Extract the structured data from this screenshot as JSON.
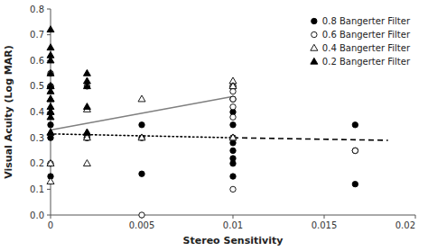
{
  "chart_data": {
    "type": "scatter",
    "xlabel": "Stereo Sensitivity",
    "ylabel": "Visual Acuity (Log MAR)",
    "xlim": [
      0,
      0.02
    ],
    "ylim": [
      0,
      0.8
    ],
    "xticks": [
      0,
      0.005,
      0.01,
      0.015,
      0.02
    ],
    "yticks": [
      {
        "value": 0,
        "label": "0.0"
      },
      0.1,
      0.2,
      0.3,
      0.4,
      0.5,
      0.6,
      0.7,
      0.8
    ],
    "legend": "upper right",
    "series": [
      {
        "name": "0.8 Bangerter Filter",
        "type": "scatter",
        "marker": "circle",
        "color": "black",
        "x": [
          0,
          0,
          0,
          0,
          0.002,
          0.002,
          0.005,
          0.005,
          0.005,
          0.01,
          0.01,
          0.01,
          0.01,
          0.01,
          0.01,
          0.01,
          0.01,
          0.01,
          0.01,
          0.0167,
          0.0167,
          0.0167
        ],
        "values": [
          0.5,
          0.35,
          0.3,
          0.15,
          0.3,
          0.3,
          0.35,
          0.3,
          0.16,
          0.5,
          0.45,
          0.4,
          0.35,
          0.3,
          0.28,
          0.25,
          0.22,
          0.2,
          0.15,
          0.35,
          0.25,
          0.12
        ]
      },
      {
        "name": "0.6 Bangerter Filter",
        "type": "scatter",
        "marker": "circle",
        "color": "white",
        "x": [
          0,
          0,
          0,
          0.002,
          0.002,
          0.005,
          0.01,
          0.01,
          0.01,
          0.01,
          0.01,
          0.01,
          0.01,
          0.0167
        ],
        "values": [
          0.55,
          0.5,
          0.2,
          0.5,
          0.3,
          0.0,
          0.5,
          0.48,
          0.45,
          0.42,
          0.38,
          0.3,
          0.1,
          0.25
        ]
      },
      {
        "name": "0.4 Bangerter Filter",
        "type": "scatter",
        "marker": "triangle",
        "color": "white",
        "x": [
          0,
          0,
          0,
          0,
          0,
          0,
          0.002,
          0.002,
          0.002,
          0.002,
          0.005,
          0.005,
          0.01,
          0.01,
          0.01
        ],
        "values": [
          0.5,
          0.45,
          0.4,
          0.32,
          0.2,
          0.13,
          0.41,
          0.32,
          0.3,
          0.2,
          0.45,
          0.3,
          0.52,
          0.5,
          0.3
        ]
      },
      {
        "name": "0.2 Bangerter Filter",
        "type": "scatter",
        "marker": "triangle",
        "color": "black",
        "x": [
          0,
          0,
          0,
          0,
          0,
          0,
          0,
          0,
          0,
          0,
          0,
          0,
          0.002,
          0.002,
          0.002,
          0.002,
          0.002
        ],
        "values": [
          0.72,
          0.65,
          0.62,
          0.6,
          0.55,
          0.5,
          0.48,
          0.45,
          0.42,
          0.4,
          0.38,
          0.32,
          0.55,
          0.52,
          0.5,
          0.42,
          0.32
        ]
      },
      {
        "type": "line",
        "line_style": "dotted",
        "color": "black",
        "x": [
          0,
          0.01
        ],
        "values": [
          0.315,
          0.3
        ]
      },
      {
        "type": "line",
        "line_style": "dashed",
        "color": "black",
        "x": [
          0.01,
          0.0185
        ],
        "values": [
          0.3,
          0.29
        ]
      },
      {
        "type": "line",
        "line_style": "solid",
        "color": "gray",
        "x": [
          0,
          0.01
        ],
        "values": [
          0.33,
          0.46
        ]
      }
    ]
  }
}
